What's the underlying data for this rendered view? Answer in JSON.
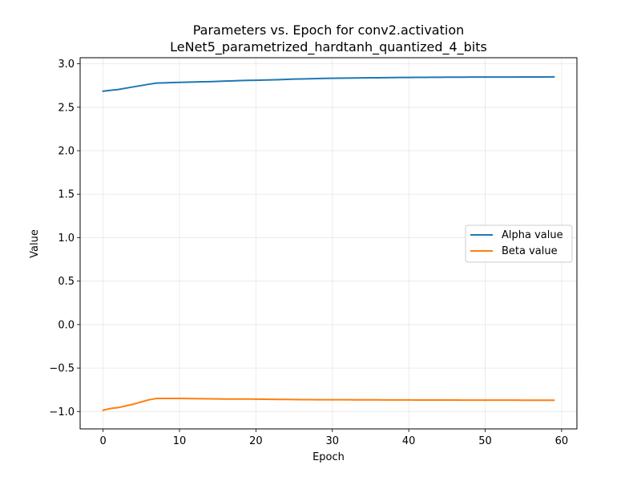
{
  "chart_data": {
    "type": "line",
    "title": "Parameters vs. Epoch for conv2.activation",
    "subtitle": "LeNet5_parametrized_hardtanh_quantized_4_bits",
    "xlabel": "Epoch",
    "ylabel": "Value",
    "xlim": [
      -3,
      62
    ],
    "ylim": [
      -1.2,
      3.07
    ],
    "xticks": [
      0,
      10,
      20,
      30,
      40,
      50,
      60
    ],
    "xtick_labels": [
      "0",
      "10",
      "20",
      "30",
      "40",
      "50",
      "60"
    ],
    "yticks": [
      -1.0,
      -0.5,
      0.0,
      0.5,
      1.0,
      1.5,
      2.0,
      2.5,
      3.0
    ],
    "ytick_labels": [
      "−1.0",
      "−0.5",
      "0.0",
      "0.5",
      "1.0",
      "1.5",
      "2.0",
      "2.5",
      "3.0"
    ],
    "grid": true,
    "legend_position": "center-right",
    "x": [
      0,
      1,
      2,
      3,
      4,
      5,
      6,
      7,
      8,
      9,
      10,
      11,
      12,
      13,
      14,
      15,
      16,
      17,
      18,
      19,
      20,
      21,
      22,
      23,
      24,
      25,
      26,
      27,
      28,
      29,
      30,
      31,
      32,
      33,
      34,
      35,
      36,
      37,
      38,
      39,
      40,
      41,
      42,
      43,
      44,
      45,
      46,
      47,
      48,
      49,
      50,
      51,
      52,
      53,
      54,
      55,
      56,
      57,
      58,
      59
    ],
    "series": [
      {
        "name": "Alpha value",
        "color": "#1f77b4",
        "values": [
          2.685,
          2.695,
          2.705,
          2.72,
          2.735,
          2.75,
          2.765,
          2.778,
          2.781,
          2.784,
          2.787,
          2.789,
          2.791,
          2.793,
          2.795,
          2.798,
          2.801,
          2.804,
          2.807,
          2.809,
          2.811,
          2.813,
          2.815,
          2.818,
          2.821,
          2.824,
          2.826,
          2.828,
          2.83,
          2.832,
          2.834,
          2.835,
          2.836,
          2.837,
          2.838,
          2.839,
          2.84,
          2.841,
          2.842,
          2.843,
          2.843,
          2.844,
          2.844,
          2.845,
          2.845,
          2.846,
          2.846,
          2.846,
          2.847,
          2.847,
          2.847,
          2.848,
          2.848,
          2.848,
          2.848,
          2.849,
          2.849,
          2.849,
          2.849,
          2.85
        ]
      },
      {
        "name": "Beta value",
        "color": "#ff7f0e",
        "values": [
          -0.985,
          -0.965,
          -0.955,
          -0.935,
          -0.915,
          -0.89,
          -0.865,
          -0.85,
          -0.85,
          -0.85,
          -0.85,
          -0.851,
          -0.852,
          -0.853,
          -0.854,
          -0.855,
          -0.856,
          -0.857,
          -0.857,
          -0.857,
          -0.858,
          -0.859,
          -0.86,
          -0.861,
          -0.861,
          -0.862,
          -0.863,
          -0.863,
          -0.864,
          -0.865,
          -0.865,
          -0.865,
          -0.865,
          -0.866,
          -0.866,
          -0.866,
          -0.866,
          -0.867,
          -0.867,
          -0.867,
          -0.867,
          -0.868,
          -0.868,
          -0.868,
          -0.868,
          -0.868,
          -0.868,
          -0.869,
          -0.869,
          -0.869,
          -0.869,
          -0.869,
          -0.869,
          -0.869,
          -0.869,
          -0.87,
          -0.87,
          -0.87,
          -0.87,
          -0.87
        ]
      }
    ]
  }
}
